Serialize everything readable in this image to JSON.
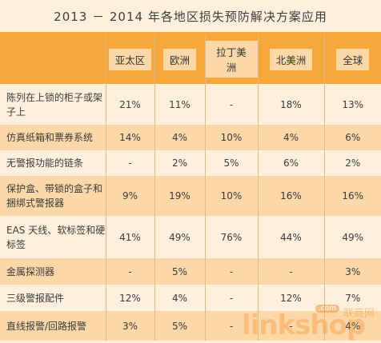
{
  "title": "2013 － 2014 年各地区损失预防解决方案应用",
  "headers": [
    "亚太区",
    "欧洲",
    "拉丁美洲",
    "北美洲",
    "全球"
  ],
  "rows": [
    {
      "label": "陈列在上锁的柜子或架子上",
      "values": [
        "21%",
        "11%",
        "-",
        "18%",
        "13%"
      ]
    },
    {
      "label": "仿真纸箱和票券系统",
      "values": [
        "14%",
        "4%",
        "10%",
        "4%",
        "6%"
      ]
    },
    {
      "label": "无警报功能的链条",
      "values": [
        "-",
        "2%",
        "5%",
        "6%",
        "2%"
      ]
    },
    {
      "label": "保护盒、带锁的盒子和捆绑式警报器",
      "values": [
        "9%",
        "19%",
        "10%",
        "16%",
        "16%"
      ]
    },
    {
      "label": "EAS 天线、软标签和硬标签",
      "values": [
        "41%",
        "49%",
        "76%",
        "44%",
        "49%"
      ]
    },
    {
      "label": "金属探测器",
      "values": [
        "-",
        "5%",
        "-",
        "-",
        "3%"
      ]
    },
    {
      "label": "三级警报配件",
      "values": [
        "12%",
        "4%",
        "-",
        "12%",
        "7%"
      ]
    },
    {
      "label": "直线报警/回路报警",
      "values": [
        "3%",
        "5%",
        "-",
        "-",
        "4%"
      ]
    }
  ],
  "watermark": {
    "text": "linkshop",
    "com": ".com",
    "cn": "联商网"
  }
}
